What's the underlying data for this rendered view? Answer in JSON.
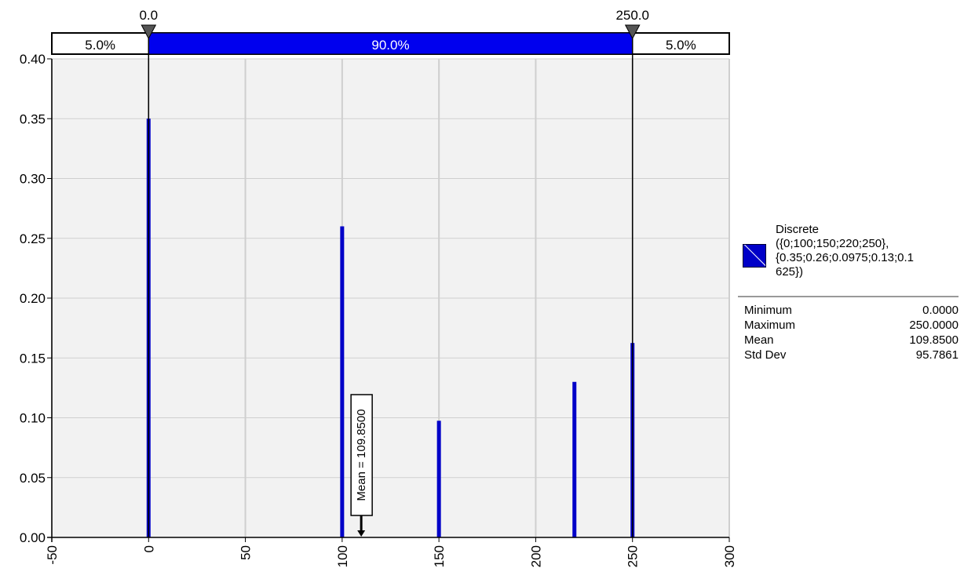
{
  "chart_data": {
    "type": "bar",
    "x": [
      0,
      100,
      150,
      220,
      250
    ],
    "values": [
      0.35,
      0.26,
      0.0975,
      0.13,
      0.1625
    ],
    "xlim": [
      -50,
      300
    ],
    "ylim": [
      0,
      0.4
    ],
    "xticks": [
      "-50",
      "0",
      "50",
      "100",
      "150",
      "200",
      "250",
      "300"
    ],
    "yticks": [
      "0.00",
      "0.05",
      "0.10",
      "0.15",
      "0.20",
      "0.25",
      "0.30",
      "0.35",
      "0.40"
    ],
    "grid": true,
    "bar_color": "#0000c8",
    "plot_background": "#f2f2f2",
    "delimiters": {
      "left_value": 0.0,
      "right_value": 250.0,
      "left_label": "0.0",
      "right_label": "250.0",
      "bands": [
        "5.0%",
        "90.0%",
        "5.0%"
      ],
      "band_color": "#0000ee"
    },
    "mean_marker": {
      "value": 109.85,
      "label": "Mean = 109.8500"
    },
    "legend_position": "right"
  },
  "legend": {
    "title_lines": [
      "Discrete",
      "({0;100;150;220;250},",
      "{0.35;0.26;0.0975;0.13;0.1",
      "625})"
    ],
    "swatch_color": "#0000c8",
    "stats": [
      {
        "label": "Minimum",
        "value": "0.0000"
      },
      {
        "label": "Maximum",
        "value": "250.0000"
      },
      {
        "label": "Mean",
        "value": "109.8500"
      },
      {
        "label": "Std Dev",
        "value": "95.7861"
      }
    ]
  }
}
